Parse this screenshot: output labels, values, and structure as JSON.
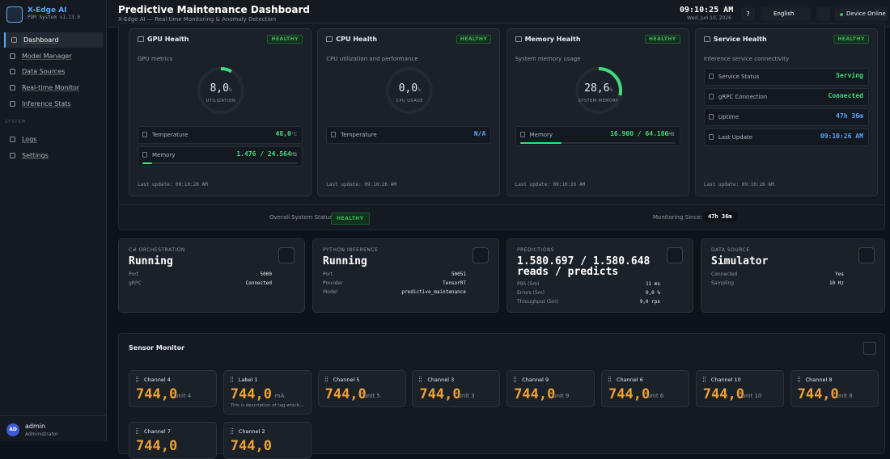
{
  "sidebar": {
    "brand": "X-Edge AI",
    "version": "PDM System v1.13.0",
    "nav": [
      "Dashboard",
      "Model Manager",
      "Data Sources",
      "Real-time Monitor",
      "Inference Stats"
    ],
    "section": "SYSTEM",
    "system_nav": [
      "Logs",
      "Settings"
    ],
    "user": {
      "initials": "AD",
      "name": "admin",
      "role": "Administrator"
    }
  },
  "header": {
    "title": "Predictive Maintenance Dashboard",
    "subtitle": "X-Edge AI — Real-time Monitoring & Anomaly Detection",
    "time": "09:10:25 AM",
    "date": "Wed, Jun 10, 2026",
    "help": "?",
    "language": "English",
    "status": "Device Online"
  },
  "health_cards": [
    {
      "title": "GPU Health",
      "badge": "HEALTHY",
      "subtitle": "GPU metrics",
      "gauge": {
        "value": 8,
        "label": "8,0",
        "unit": "%",
        "caption": "UTILIZATION"
      },
      "rows": [
        {
          "label": "Temperature",
          "value": "48,0",
          "unit": "°C"
        },
        {
          "label": "Memory",
          "value": "1.476 / 24.564",
          "unit": "MB",
          "used": 1476,
          "total": 24564
        }
      ],
      "footer": "Last update: 09:10:26 AM"
    },
    {
      "title": "CPU Health",
      "badge": "HEALTHY",
      "subtitle": "CPU utilization and performance",
      "gauge": {
        "value": 0,
        "label": "0,0",
        "unit": "%",
        "caption": "CPU USAGE"
      },
      "rows": [
        {
          "label": "Temperature",
          "value": "N/A"
        }
      ],
      "footer": "Last update: 09:10:26 AM"
    },
    {
      "title": "Memory Health",
      "badge": "HEALTHY",
      "subtitle": "System memory usage",
      "gauge": {
        "value": 28.6,
        "label": "28,6",
        "unit": "%",
        "caption": "SYSTEM MEMORY"
      },
      "rows": [
        {
          "label": "Memory",
          "value": "16.900 / 64.186",
          "unit": "MB",
          "used": 16900,
          "total": 64186
        }
      ],
      "footer": "Last update: 09:10:26 AM"
    },
    {
      "title": "Service Health",
      "badge": "HEALTHY",
      "subtitle": "Inference service connectivity",
      "rows": [
        {
          "label": "Service Status",
          "value": "Serving"
        },
        {
          "label": "gRPC Connection",
          "value": "Connected"
        },
        {
          "label": "Uptime",
          "value": "47h 36m"
        },
        {
          "label": "Last Update",
          "value": "09:10:26 AM"
        }
      ],
      "footer": "Last update: 09:10:26 AM"
    }
  ],
  "status_bar": {
    "label": "Overall System Status:",
    "badge": "HEALTHY",
    "since_label": "Monitoring Since:",
    "since": "47h 36m"
  },
  "info_cards": [
    {
      "title": "C# ORCHESTRATION",
      "value": "Running",
      "rows": [
        {
          "label": "Port",
          "value": "5000"
        },
        {
          "label": "gRPC",
          "value": "Connected"
        }
      ]
    },
    {
      "title": "PYTHON INFERENCE",
      "value": "Running",
      "rows": [
        {
          "label": "Port",
          "value": "50051"
        },
        {
          "label": "Provider",
          "value": "TensorRT"
        },
        {
          "label": "Model",
          "value": "predictive_maintenance"
        }
      ]
    },
    {
      "title": "PREDICTIONS",
      "value": "1.580.697 / 1.580.648 reads / predicts",
      "rows": [
        {
          "label": "P95 (5m)",
          "value": "11 ms"
        },
        {
          "label": "Errors (5m)",
          "value": "0,0 %"
        },
        {
          "label": "Throughput (5m)",
          "value": "9,0 rps"
        }
      ]
    },
    {
      "title": "DATA SOURCE",
      "value": "Simulator",
      "rows": [
        {
          "label": "Connected",
          "value": "Yes"
        },
        {
          "label": "Sampling",
          "value": "10 Hz"
        }
      ]
    }
  ],
  "sensor_monitor": {
    "title": "Sensor Monitor",
    "sensors": [
      {
        "name": "Channel 4",
        "value": "744,0",
        "unit": "unit 4"
      },
      {
        "name": "Label 1",
        "value": "744,0",
        "unit": "mA",
        "description": "This is description of tag which..."
      },
      {
        "name": "Channel 5",
        "value": "744,0",
        "unit": "unit 5"
      },
      {
        "name": "Channel 3",
        "value": "744,0",
        "unit": "unit 3"
      },
      {
        "name": "Channel 9",
        "value": "744,0",
        "unit": "unit 9"
      },
      {
        "name": "Channel 6",
        "value": "744,0",
        "unit": "unit 6"
      },
      {
        "name": "Channel 10",
        "value": "744,0",
        "unit": "unit 10"
      },
      {
        "name": "Channel 8",
        "value": "744,0",
        "unit": "unit 8"
      },
      {
        "name": "Channel 7",
        "value": "744,0"
      },
      {
        "name": "Channel 2",
        "value": "744,0"
      }
    ]
  }
}
